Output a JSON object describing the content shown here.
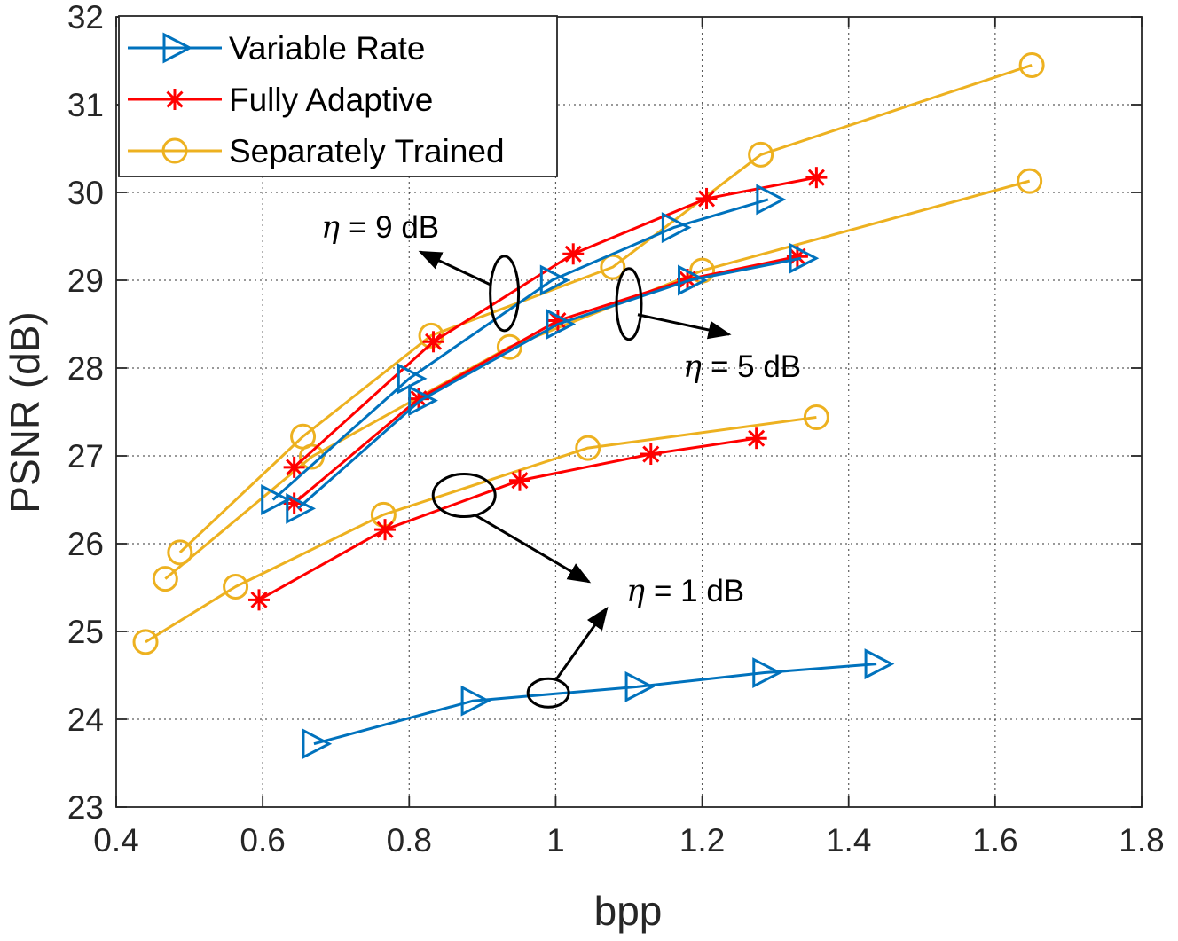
{
  "chart_data": {
    "type": "line",
    "title": "",
    "xlabel": "bpp",
    "ylabel": "PSNR (dB)",
    "xlim": [
      0.4,
      1.8
    ],
    "ylim": [
      23,
      32
    ],
    "grid": true,
    "legend_position": "top-left",
    "xticks": [
      "0.4",
      "0.6",
      "0.8",
      "1",
      "1.2",
      "1.4",
      "1.6",
      "1.8"
    ],
    "yticks": [
      "23",
      "24",
      "25",
      "26",
      "27",
      "28",
      "29",
      "30",
      "31",
      "32"
    ],
    "legend": [
      {
        "name": "Variable Rate",
        "color": "#0072BD",
        "marker": "triangle-right"
      },
      {
        "name": "Fully Adaptive",
        "color": "#FF0000",
        "marker": "asterisk"
      },
      {
        "name": "Separately Trained",
        "color": "#EDB120",
        "marker": "circle"
      }
    ],
    "series": [
      {
        "method": "Separately Trained",
        "eta": "1 dB",
        "x": [
          0.44,
          0.563,
          0.765,
          1.044,
          1.356
        ],
        "y": [
          24.88,
          25.51,
          26.33,
          27.09,
          27.44
        ]
      },
      {
        "method": "Fully Adaptive",
        "eta": "1 dB",
        "x": [
          0.595,
          0.767,
          0.951,
          1.13,
          1.274
        ],
        "y": [
          25.36,
          26.16,
          26.72,
          27.02,
          27.2
        ]
      },
      {
        "method": "Variable Rate",
        "eta": "1 dB",
        "x": [
          0.67,
          0.887,
          1.111,
          1.285,
          1.438
        ],
        "y": [
          23.72,
          24.21,
          24.37,
          24.53,
          24.63
        ]
      },
      {
        "method": "Separately Trained",
        "eta": "5 dB",
        "x": [
          0.467,
          0.667,
          0.937,
          1.2,
          1.647
        ],
        "y": [
          25.6,
          26.99,
          28.24,
          29.11,
          30.13
        ]
      },
      {
        "method": "Fully Adaptive",
        "eta": "5 dB",
        "x": [
          0.643,
          0.813,
          1.003,
          1.18,
          1.33
        ],
        "y": [
          26.46,
          27.65,
          28.54,
          29.01,
          29.27
        ]
      },
      {
        "method": "Variable Rate",
        "eta": "5 dB",
        "x": [
          0.648,
          0.815,
          1.003,
          1.183,
          1.335
        ],
        "y": [
          26.4,
          27.63,
          28.5,
          29.0,
          29.25
        ]
      },
      {
        "method": "Separately Trained",
        "eta": "9 dB",
        "x": [
          0.487,
          0.655,
          0.83,
          1.078,
          1.28,
          1.65
        ],
        "y": [
          25.9,
          27.22,
          28.37,
          29.15,
          30.43,
          31.45
        ]
      },
      {
        "method": "Fully Adaptive",
        "eta": "9 dB",
        "x": [
          0.643,
          0.833,
          1.024,
          1.206,
          1.356
        ],
        "y": [
          26.87,
          28.3,
          29.3,
          29.93,
          30.17
        ]
      },
      {
        "method": "Variable Rate",
        "eta": "9 dB",
        "x": [
          0.614,
          0.8,
          0.995,
          1.161,
          1.29
        ],
        "y": [
          26.5,
          27.88,
          29.0,
          29.6,
          29.92
        ]
      }
    ],
    "annotations": [
      {
        "text": "= 9 dB",
        "symbol": "η",
        "target_x": 0.93,
        "target_y": 28.85
      },
      {
        "text": "= 5 dB",
        "symbol": "η",
        "target_x": 1.1,
        "target_y": 28.73
      },
      {
        "text": "= 1 dB",
        "symbol": "η",
        "target_x": 0.875,
        "target_y": 26.55
      },
      {
        "text": "= 1 dB",
        "symbol": "η",
        "target_x": 0.99,
        "target_y": 24.3
      }
    ]
  }
}
